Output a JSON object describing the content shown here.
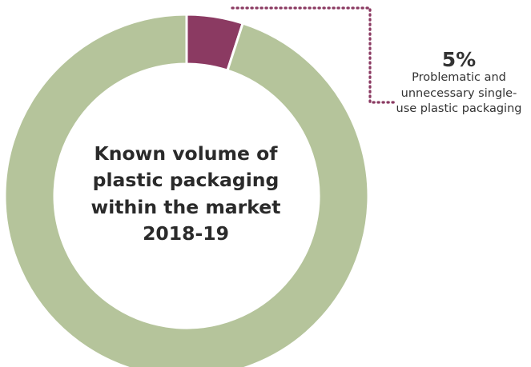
{
  "chart_data": {
    "type": "pie",
    "title": "Known volume of plastic packaging within the market 2018-19",
    "slices": [
      {
        "label": "Problematic and unnecessary single-use plastic packaging",
        "value": 5,
        "value_label": "5%",
        "color": "#8b3a62"
      },
      {
        "label": "",
        "value": 95,
        "color": "#b5c49b"
      }
    ],
    "donut": true,
    "callout_color": "#8b3a62"
  }
}
